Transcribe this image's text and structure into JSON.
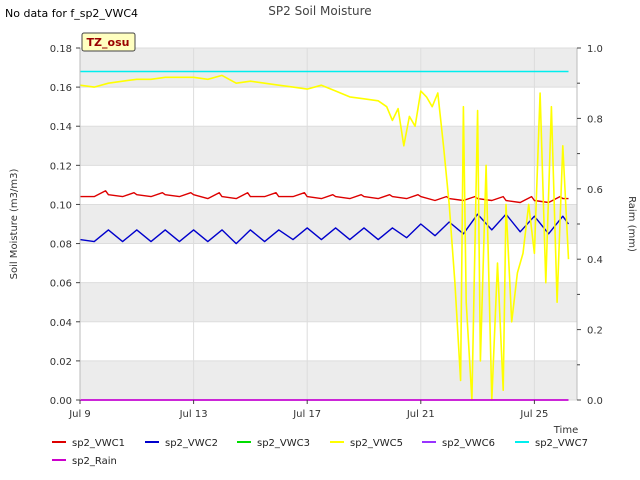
{
  "note": "No data for f_sp2_VWC4",
  "chart_data": {
    "type": "line",
    "title": "SP2 Soil Moisture",
    "xlabel": "Time",
    "ylabel": "Soil Moisture (m3/m3)",
    "y2label": "Raim (mm)",
    "site_badge": "TZ_osu",
    "xlim": [
      0,
      17.5
    ],
    "ylim": [
      0,
      0.18
    ],
    "y2lim": [
      0,
      1.0
    ],
    "x_ticks": [
      {
        "x": 0,
        "label": "Jul 9"
      },
      {
        "x": 4,
        "label": "Jul 13"
      },
      {
        "x": 8,
        "label": "Jul 17"
      },
      {
        "x": 12,
        "label": "Jul 21"
      },
      {
        "x": 16,
        "label": "Jul 25"
      }
    ],
    "y_ticks": [
      0.0,
      0.02,
      0.04,
      0.06,
      0.08,
      0.1,
      0.12,
      0.14,
      0.16,
      0.18
    ],
    "y_tick_labels": [
      "0.00",
      "0.02",
      "0.04",
      "0.06",
      "0.08",
      "0.10",
      "0.12",
      "0.14",
      "0.16",
      "0.18"
    ],
    "y2_ticks": [
      0.0,
      0.2,
      0.4,
      0.6,
      0.8,
      1.0
    ],
    "y2_tick_labels": [
      "0.0",
      "0.2",
      "0.4",
      "0.6",
      "0.8",
      "1.0"
    ],
    "grid": true,
    "legend_placement": "bottom",
    "series": [
      {
        "name": "sp2_VWC1",
        "color": "#dd0000",
        "x": [
          0,
          0.5,
          0.9,
          1.0,
          1.5,
          1.9,
          2.0,
          2.5,
          2.9,
          3.0,
          3.5,
          3.9,
          4.0,
          4.5,
          4.9,
          5.0,
          5.5,
          5.9,
          6.0,
          6.5,
          6.9,
          7.0,
          7.5,
          7.9,
          8.0,
          8.5,
          8.9,
          9.0,
          9.5,
          9.9,
          10.0,
          10.5,
          10.9,
          11.0,
          11.5,
          11.9,
          12.0,
          12.5,
          12.9,
          13.0,
          13.5,
          13.9,
          14.0,
          14.5,
          14.9,
          15.0,
          15.5,
          15.9,
          16.0,
          16.5,
          16.9,
          17.0,
          17.2
        ],
        "values": [
          0.104,
          0.104,
          0.107,
          0.105,
          0.104,
          0.106,
          0.105,
          0.104,
          0.106,
          0.105,
          0.104,
          0.106,
          0.105,
          0.103,
          0.106,
          0.104,
          0.103,
          0.106,
          0.104,
          0.104,
          0.106,
          0.104,
          0.104,
          0.106,
          0.104,
          0.103,
          0.105,
          0.104,
          0.103,
          0.105,
          0.104,
          0.103,
          0.105,
          0.104,
          0.103,
          0.105,
          0.104,
          0.102,
          0.104,
          0.103,
          0.102,
          0.104,
          0.103,
          0.102,
          0.104,
          0.102,
          0.101,
          0.104,
          0.102,
          0.101,
          0.104,
          0.103,
          0.103
        ]
      },
      {
        "name": "sp2_VWC2",
        "color": "#0000cc",
        "x": [
          0,
          0.5,
          1.0,
          1.5,
          2.0,
          2.5,
          3.0,
          3.5,
          4.0,
          4.5,
          5.0,
          5.5,
          6.0,
          6.5,
          7.0,
          7.5,
          8.0,
          8.5,
          9.0,
          9.5,
          10.0,
          10.5,
          11.0,
          11.5,
          12.0,
          12.5,
          13.0,
          13.5,
          14.0,
          14.5,
          15.0,
          15.5,
          16.0,
          16.5,
          17.0,
          17.2
        ],
        "values": [
          0.082,
          0.081,
          0.087,
          0.081,
          0.087,
          0.081,
          0.087,
          0.081,
          0.087,
          0.081,
          0.087,
          0.08,
          0.087,
          0.081,
          0.087,
          0.082,
          0.088,
          0.082,
          0.088,
          0.082,
          0.088,
          0.082,
          0.088,
          0.083,
          0.09,
          0.084,
          0.091,
          0.085,
          0.095,
          0.087,
          0.095,
          0.086,
          0.094,
          0.085,
          0.094,
          0.09
        ]
      },
      {
        "name": "sp2_VWC3",
        "color": "#00dd00",
        "x": [],
        "values": []
      },
      {
        "name": "sp2_VWC5",
        "color": "#ffff00",
        "x": [
          0,
          0.5,
          1,
          1.5,
          2,
          2.5,
          3,
          3.5,
          4,
          4.5,
          5,
          5.5,
          6,
          6.5,
          7,
          7.5,
          8,
          8.5,
          9,
          9.5,
          10,
          10.5,
          10.8,
          11.0,
          11.2,
          11.4,
          11.6,
          11.8,
          12.0,
          12.2,
          12.4,
          12.6,
          12.8,
          13.0,
          13.2,
          13.4,
          13.5,
          13.6,
          13.8,
          14.0,
          14.1,
          14.3,
          14.5,
          14.7,
          14.9,
          15.0,
          15.2,
          15.4,
          15.6,
          15.8,
          16.0,
          16.2,
          16.4,
          16.6,
          16.8,
          17.0,
          17.2
        ],
        "values": [
          0.161,
          0.16,
          0.162,
          0.163,
          0.164,
          0.164,
          0.165,
          0.165,
          0.165,
          0.164,
          0.166,
          0.162,
          0.163,
          0.162,
          0.161,
          0.16,
          0.159,
          0.161,
          0.158,
          0.155,
          0.154,
          0.153,
          0.15,
          0.143,
          0.149,
          0.13,
          0.145,
          0.14,
          0.158,
          0.155,
          0.15,
          0.157,
          0.13,
          0.1,
          0.06,
          0.01,
          0.15,
          0.05,
          0.0,
          0.148,
          0.02,
          0.12,
          0.0,
          0.07,
          0.005,
          0.1,
          0.04,
          0.065,
          0.075,
          0.1,
          0.075,
          0.157,
          0.06,
          0.15,
          0.05,
          0.13,
          0.072
        ]
      },
      {
        "name": "sp2_VWC6",
        "color": "#9933ff",
        "x": [
          0,
          17.2
        ],
        "values": [
          0.0,
          0.0
        ]
      },
      {
        "name": "sp2_VWC7",
        "color": "#00eeee",
        "x": [
          0,
          17.2
        ],
        "values": [
          0.168,
          0.168
        ]
      },
      {
        "name": "sp2_Rain",
        "color": "#cc00cc",
        "axis": "right",
        "x": [
          0,
          17.2
        ],
        "values": [
          0.0,
          0.0
        ]
      }
    ]
  }
}
